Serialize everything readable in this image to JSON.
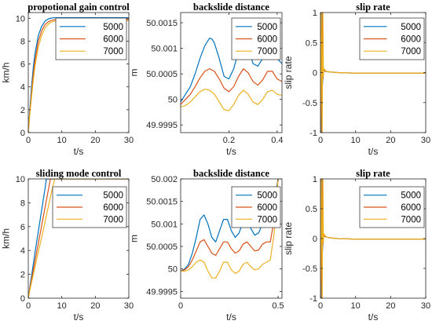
{
  "colors": {
    "5000": "#0072BD",
    "6000": "#D95319",
    "7000": "#EDB120"
  },
  "chart_data": [
    {
      "type": "line",
      "title": "propotional gain control",
      "xlabel": "t/s",
      "ylabel": "km/h",
      "xlim": [
        0,
        30
      ],
      "ylim": [
        0,
        10.5
      ],
      "xticks": [
        0,
        10,
        20,
        30
      ],
      "xtick_labels": [
        "0",
        "10",
        "20",
        "30"
      ],
      "yticks": [
        0,
        2,
        4,
        6,
        8,
        10
      ],
      "ytick_labels": [
        "0",
        "2",
        "4",
        "6",
        "8",
        "10"
      ],
      "legend": "top-right",
      "grid": false,
      "series": [
        {
          "name": "5000",
          "x": [
            0,
            0.5,
            1,
            1.5,
            2,
            3,
            4,
            5,
            6,
            7,
            8,
            10,
            15,
            20,
            25,
            30
          ],
          "y": [
            0,
            2.2,
            4.1,
            5.7,
            6.9,
            8.5,
            9.3,
            9.75,
            9.95,
            10.02,
            10.05,
            10.05,
            10.05,
            10.05,
            10.05,
            10.05
          ]
        },
        {
          "name": "6000",
          "x": [
            0,
            0.5,
            1,
            1.5,
            2,
            3,
            4,
            5,
            6,
            7,
            8,
            10,
            15,
            20,
            25,
            30
          ],
          "y": [
            0,
            1.9,
            3.6,
            5.1,
            6.3,
            8,
            8.9,
            9.45,
            9.7,
            9.82,
            9.88,
            9.9,
            9.9,
            9.9,
            9.9,
            9.9
          ]
        },
        {
          "name": "7000",
          "x": [
            0,
            0.5,
            1,
            1.5,
            2,
            3,
            4,
            5,
            6,
            7,
            8,
            10,
            15,
            20,
            25,
            30
          ],
          "y": [
            0,
            1.7,
            3.2,
            4.6,
            5.8,
            7.5,
            8.5,
            9.15,
            9.5,
            9.68,
            9.76,
            9.8,
            9.8,
            9.8,
            9.8,
            9.8
          ]
        }
      ]
    },
    {
      "type": "line",
      "title": "backslide distance",
      "xlabel": "t/s",
      "ylabel": "m",
      "xlim": [
        0,
        0.42
      ],
      "ylim": [
        49.99935,
        50.0017
      ],
      "xticks": [
        0.2,
        0.4
      ],
      "xtick_labels": [
        "0.2",
        "0.4"
      ],
      "yticks": [
        49.9995,
        50,
        50.0005,
        50.001,
        50.0015
      ],
      "ytick_labels": [
        "49.9995",
        "50",
        "50.0005",
        "50.001",
        "50.0015"
      ],
      "legend": "top-right",
      "grid": false,
      "series": [
        {
          "name": "5000",
          "x": [
            0,
            0.02,
            0.04,
            0.06,
            0.08,
            0.1,
            0.12,
            0.13,
            0.14,
            0.16,
            0.18,
            0.2,
            0.22,
            0.24,
            0.26,
            0.28,
            0.3,
            0.32,
            0.34,
            0.36,
            0.38,
            0.4,
            0.42
          ],
          "y": [
            49.99995,
            50.0001,
            50.00025,
            50.0005,
            50.0008,
            50.00105,
            50.0012,
            50.00118,
            50.0011,
            50.0008,
            50.00045,
            50.0004,
            50.0006,
            50.00095,
            50.0011,
            50.001,
            50.0007,
            50.00065,
            50.0008,
            50.001,
            50.00098,
            50.0008,
            50.0007
          ]
        },
        {
          "name": "6000",
          "x": [
            0,
            0.02,
            0.04,
            0.06,
            0.08,
            0.1,
            0.12,
            0.14,
            0.16,
            0.18,
            0.2,
            0.22,
            0.24,
            0.26,
            0.28,
            0.3,
            0.32,
            0.34,
            0.36,
            0.38,
            0.4,
            0.42
          ],
          "y": [
            49.9999,
            50.0,
            50.0001,
            50.00025,
            50.00042,
            50.00055,
            50.0006,
            50.00055,
            50.0004,
            50.00022,
            50.00015,
            50.00025,
            50.00045,
            50.0006,
            50.00052,
            50.00035,
            50.00028,
            50.00038,
            50.00055,
            50.00055,
            50.0004,
            50.00035
          ]
        },
        {
          "name": "7000",
          "x": [
            0,
            0.02,
            0.04,
            0.06,
            0.08,
            0.1,
            0.12,
            0.14,
            0.16,
            0.18,
            0.2,
            0.22,
            0.24,
            0.26,
            0.28,
            0.3,
            0.32,
            0.34,
            0.36,
            0.38,
            0.4,
            0.42
          ],
          "y": [
            49.99985,
            49.99988,
            49.99995,
            50.00005,
            50.00015,
            50.0002,
            50.00018,
            50.0001,
            49.99995,
            49.9998,
            49.99978,
            49.9999,
            50.00008,
            50.00018,
            50.0001,
            49.99995,
            49.9999,
            50.0,
            50.00015,
            50.00018,
            50.0001,
            50.00008
          ]
        }
      ]
    },
    {
      "type": "line",
      "title": "slip rate",
      "xlabel": "t/s",
      "ylabel": "slip rate",
      "xlim": [
        0,
        30
      ],
      "ylim": [
        -1,
        1
      ],
      "xticks": [
        0,
        10,
        20,
        30
      ],
      "xtick_labels": [
        "0",
        "10",
        "20",
        "30"
      ],
      "yticks": [
        -1,
        -0.5,
        0,
        0.5,
        1
      ],
      "ytick_labels": [
        "-1",
        "-0.5",
        "0",
        "0.5",
        "1"
      ],
      "legend": "top-right",
      "grid": false,
      "series": [
        {
          "name": "5000",
          "x": [
            0,
            0.15,
            0.3,
            0.5,
            0.6,
            0.8,
            1,
            1.5,
            2,
            3,
            5,
            10,
            15,
            20,
            25,
            30
          ],
          "y": [
            -1,
            1,
            -1,
            1,
            -0.2,
            0.05,
            0.03,
            0.02,
            0.015,
            0.01,
            0.0,
            -0.01,
            -0.01,
            -0.01,
            -0.01,
            -0.01
          ]
        },
        {
          "name": "6000",
          "x": [
            0,
            0.2,
            0.4,
            0.6,
            0.7,
            0.9,
            1.2,
            1.5,
            2,
            3,
            5,
            10,
            15,
            20,
            25,
            30
          ],
          "y": [
            -1,
            1,
            -1,
            1,
            -0.1,
            0.06,
            0.03,
            0.02,
            0.015,
            0.01,
            0.0,
            -0.01,
            -0.01,
            -0.01,
            -0.01,
            -0.01
          ]
        },
        {
          "name": "7000",
          "x": [
            0,
            0.25,
            0.5,
            0.7,
            0.85,
            1,
            1.3,
            1.6,
            2,
            3,
            5,
            10,
            15,
            20,
            25,
            30
          ],
          "y": [
            -1,
            1,
            -1,
            1,
            -0.05,
            0.07,
            0.04,
            0.025,
            0.015,
            0.01,
            0.0,
            -0.01,
            -0.01,
            -0.01,
            -0.01,
            -0.01
          ]
        }
      ]
    },
    {
      "type": "line",
      "title": "sliding mode control",
      "xlabel": "t/s",
      "ylabel": "km/h",
      "xlim": [
        0,
        30
      ],
      "ylim": [
        0,
        10
      ],
      "xticks": [
        0,
        10,
        20,
        30
      ],
      "xtick_labels": [
        "0",
        "10",
        "20",
        "30"
      ],
      "yticks": [
        0,
        2,
        4,
        6,
        8,
        10
      ],
      "ytick_labels": [
        "0",
        "2",
        "4",
        "6",
        "8",
        "10"
      ],
      "legend": "top-right",
      "grid": false,
      "series": [
        {
          "name": "5000",
          "x": [
            0,
            0.5,
            1,
            2,
            3,
            4,
            5,
            5.4,
            6,
            10,
            15,
            20,
            25,
            30
          ],
          "y": [
            0,
            1,
            1.9,
            3.8,
            5.6,
            7.4,
            9.2,
            10,
            10,
            10,
            10,
            10,
            10,
            10
          ]
        },
        {
          "name": "6000",
          "x": [
            0,
            0.5,
            1,
            2,
            3,
            4,
            5,
            6,
            6.6,
            7,
            10,
            15,
            20,
            25,
            30
          ],
          "y": [
            0,
            0.85,
            1.6,
            3.1,
            4.6,
            6.1,
            7.6,
            9.1,
            10,
            10,
            10,
            10,
            10,
            10,
            10
          ]
        },
        {
          "name": "7000",
          "x": [
            0,
            0.5,
            1,
            2,
            3,
            4,
            5,
            6,
            7,
            7.9,
            8,
            10,
            15,
            20,
            25,
            30
          ],
          "y": [
            0,
            0.7,
            1.35,
            2.6,
            3.9,
            5.1,
            6.4,
            7.7,
            9.0,
            10,
            10,
            10,
            10,
            10,
            10,
            10
          ]
        }
      ]
    },
    {
      "type": "line",
      "title": "backslide distance",
      "xlabel": "t/s",
      "ylabel": "m",
      "xlim": [
        0,
        0.52
      ],
      "ylim": [
        49.99935,
        50.002
      ],
      "xticks": [
        0,
        0.5
      ],
      "xtick_labels": [
        "0",
        "0.5"
      ],
      "yticks": [
        49.9995,
        50,
        50.0005,
        50.001,
        50.0015,
        50.002
      ],
      "ytick_labels": [
        "49.9995",
        "50",
        "50.0005",
        "50.001",
        "50.0015",
        "50.002"
      ],
      "legend": "top-right",
      "grid": false,
      "series": [
        {
          "name": "5000",
          "x": [
            0,
            0.02,
            0.04,
            0.06,
            0.08,
            0.1,
            0.12,
            0.14,
            0.16,
            0.18,
            0.2,
            0.22,
            0.24,
            0.26,
            0.28,
            0.3,
            0.32,
            0.34,
            0.36,
            0.38,
            0.4,
            0.42,
            0.44,
            0.46,
            0.48,
            0.5
          ],
          "y": [
            49.99995,
            50.0,
            50.0001,
            50.00035,
            50.0007,
            50.0011,
            50.0012,
            50.001,
            50.0007,
            50.0006,
            50.00085,
            50.0011,
            50.0011,
            50.00085,
            50.0007,
            50.0008,
            50.00105,
            50.0011,
            50.0009,
            50.00075,
            50.0008,
            50.001,
            50.0011,
            50.001,
            50.0015,
            50.002
          ]
        },
        {
          "name": "6000",
          "x": [
            0,
            0.02,
            0.04,
            0.06,
            0.08,
            0.1,
            0.12,
            0.14,
            0.16,
            0.18,
            0.2,
            0.22,
            0.24,
            0.26,
            0.28,
            0.3,
            0.32,
            0.34,
            0.36,
            0.38,
            0.4,
            0.42,
            0.44,
            0.46,
            0.48,
            0.5
          ],
          "y": [
            49.99995,
            49.99998,
            50.00005,
            50.0002,
            50.0004,
            50.0006,
            50.00065,
            50.0005,
            50.00035,
            50.0003,
            50.00045,
            50.0006,
            50.0006,
            50.00045,
            50.00035,
            50.0004,
            50.00055,
            50.0006,
            50.0005,
            50.0004,
            50.00042,
            50.00055,
            50.0006,
            50.0006,
            50.0011,
            50.002
          ]
        },
        {
          "name": "7000",
          "x": [
            0,
            0.02,
            0.04,
            0.06,
            0.08,
            0.1,
            0.12,
            0.14,
            0.16,
            0.18,
            0.2,
            0.22,
            0.24,
            0.26,
            0.28,
            0.3,
            0.32,
            0.34,
            0.36,
            0.38,
            0.4,
            0.42,
            0.44,
            0.46,
            0.48,
            0.5
          ],
          "y": [
            49.99995,
            49.99995,
            49.99998,
            50.00005,
            50.00015,
            50.0002,
            50.00015,
            49.99995,
            49.9998,
            49.9998,
            49.99995,
            50.00015,
            50.00015,
            49.99998,
            49.9999,
            49.99995,
            50.0001,
            50.00015,
            50.00005,
            49.99998,
            50.0,
            50.0001,
            50.00015,
            50.0002,
            50.0008,
            50.002
          ]
        }
      ]
    },
    {
      "type": "line",
      "title": "slip rate",
      "xlabel": "t/s",
      "ylabel": "slip rate",
      "xlim": [
        0,
        30
      ],
      "ylim": [
        -1,
        1
      ],
      "xticks": [
        0,
        10,
        20,
        30
      ],
      "xtick_labels": [
        "0",
        "10",
        "20",
        "30"
      ],
      "yticks": [
        -1,
        -0.5,
        0,
        0.5,
        1
      ],
      "ytick_labels": [
        "-1",
        "-0.5",
        "0",
        "0.5",
        "1"
      ],
      "legend": "top-right",
      "grid": false,
      "series": [
        {
          "name": "5000",
          "x": [
            0,
            0.15,
            0.3,
            0.5,
            0.6,
            0.8,
            1,
            1.5,
            2,
            3,
            5,
            10,
            15,
            20,
            25,
            30
          ],
          "y": [
            -1,
            1,
            -1,
            1,
            -0.2,
            0.06,
            0.04,
            0.03,
            0.02,
            0.01,
            0.0,
            -0.01,
            -0.01,
            -0.01,
            -0.01,
            -0.01
          ]
        },
        {
          "name": "6000",
          "x": [
            0,
            0.2,
            0.4,
            0.6,
            0.7,
            0.9,
            1.2,
            1.5,
            2,
            3,
            5,
            10,
            15,
            20,
            25,
            30
          ],
          "y": [
            -1,
            1,
            -1,
            1,
            -0.1,
            0.07,
            0.04,
            0.03,
            0.02,
            0.01,
            0.0,
            -0.01,
            -0.01,
            -0.01,
            -0.01,
            -0.01
          ]
        },
        {
          "name": "7000",
          "x": [
            0,
            0.25,
            0.5,
            0.7,
            0.85,
            1,
            1.3,
            1.6,
            2,
            3,
            5,
            10,
            15,
            20,
            25,
            30
          ],
          "y": [
            -1,
            1,
            -1,
            1,
            -0.05,
            0.08,
            0.05,
            0.03,
            0.02,
            0.01,
            0.0,
            -0.01,
            -0.01,
            -0.01,
            -0.01,
            -0.01
          ]
        }
      ]
    }
  ]
}
